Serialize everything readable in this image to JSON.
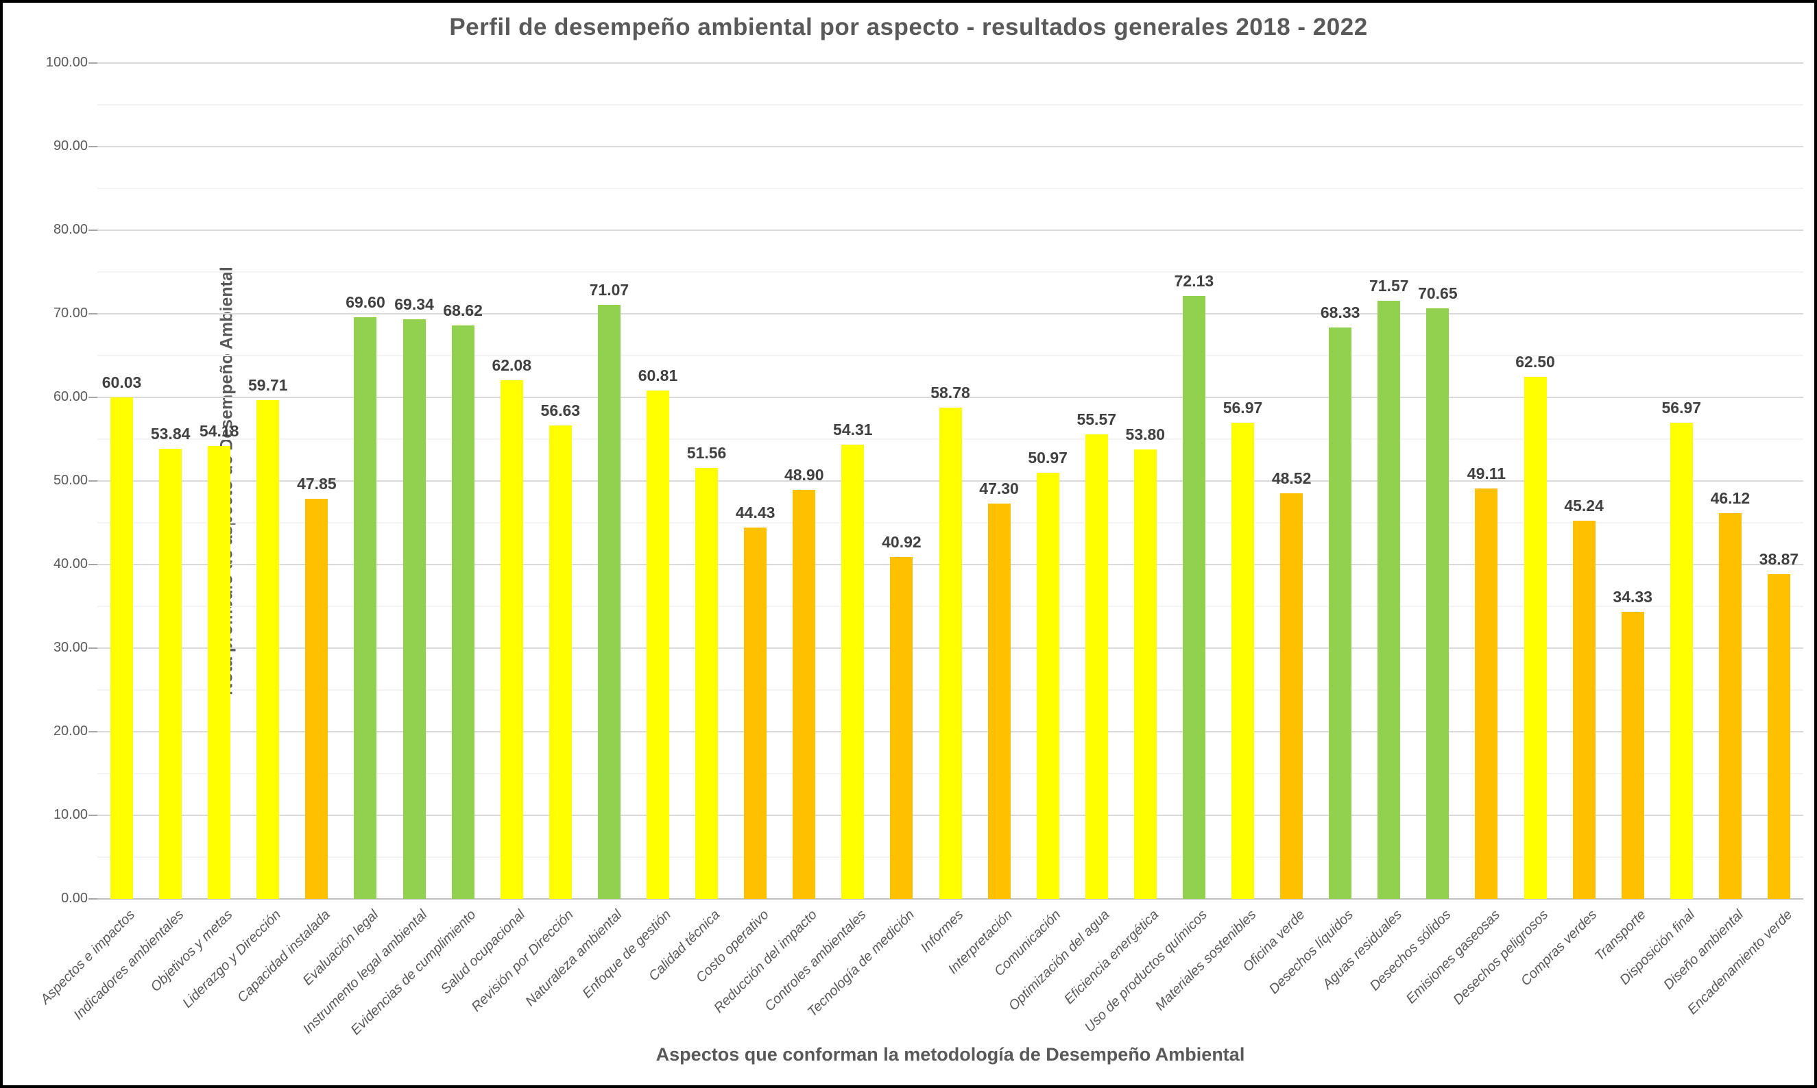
{
  "chart_data": {
    "type": "bar",
    "title": "Perfil de desempeño ambiental por aspecto - resultados generales  2018 - 2022",
    "xlabel": "Aspectos que conforman la metodología de Desempeño Ambiental",
    "ylabel": "Nota promedio de aspecto de Desempeño Ambiental",
    "ylim": [
      0,
      100
    ],
    "y_major_tick": 10,
    "y_minor_tick": 5,
    "y_tick_labels": [
      "0.00",
      "10.00",
      "20.00",
      "30.00",
      "40.00",
      "50.00",
      "60.00",
      "70.00",
      "80.00",
      "90.00",
      "100.00"
    ],
    "grid": true,
    "legend_position": "none",
    "palette": {
      "yellow": "#FFFF00",
      "green": "#92D050",
      "orange": "#FFC000"
    },
    "points": [
      {
        "category": "Aspectos e impactos",
        "value": 60.03,
        "label": "60.03",
        "color": "yellow"
      },
      {
        "category": "Indicadores ambientales",
        "value": 53.84,
        "label": "53.84",
        "color": "yellow"
      },
      {
        "category": "Objetivos y metas",
        "value": 54.18,
        "label": "54.18",
        "color": "yellow"
      },
      {
        "category": "Liderazgo y Dirección",
        "value": 59.71,
        "label": "59.71",
        "color": "yellow"
      },
      {
        "category": "Capacidad instalada",
        "value": 47.85,
        "label": "47.85",
        "color": "orange"
      },
      {
        "category": "Evaluación legal",
        "value": 69.6,
        "label": "69.60",
        "color": "green"
      },
      {
        "category": "Instrumento legal ambiental",
        "value": 69.34,
        "label": "69.34",
        "color": "green"
      },
      {
        "category": "Evidencias de cumplimiento",
        "value": 68.62,
        "label": "68.62",
        "color": "green"
      },
      {
        "category": "Salud ocupacional",
        "value": 62.08,
        "label": "62.08",
        "color": "yellow"
      },
      {
        "category": "Revisión por Dirección",
        "value": 56.63,
        "label": "56.63",
        "color": "yellow"
      },
      {
        "category": "Naturaleza ambiental",
        "value": 71.07,
        "label": "71.07",
        "color": "green"
      },
      {
        "category": "Enfoque de gestión",
        "value": 60.81,
        "label": "60.81",
        "color": "yellow"
      },
      {
        "category": "Calidad técnica",
        "value": 51.56,
        "label": "51.56",
        "color": "yellow"
      },
      {
        "category": "Costo operativo",
        "value": 44.43,
        "label": "44.43",
        "color": "orange"
      },
      {
        "category": "Reducción del impacto",
        "value": 48.9,
        "label": "48.90",
        "color": "orange"
      },
      {
        "category": "Controles ambientales",
        "value": 54.31,
        "label": "54.31",
        "color": "yellow"
      },
      {
        "category": "Tecnología de medición",
        "value": 40.92,
        "label": "40.92",
        "color": "orange"
      },
      {
        "category": "Informes",
        "value": 58.78,
        "label": "58.78",
        "color": "yellow"
      },
      {
        "category": "Interpretación",
        "value": 47.3,
        "label": "47.30",
        "color": "orange"
      },
      {
        "category": "Comunicación",
        "value": 50.97,
        "label": "50.97",
        "color": "yellow"
      },
      {
        "category": "Optimización del agua",
        "value": 55.57,
        "label": "55.57",
        "color": "yellow"
      },
      {
        "category": "Eficiencia energética",
        "value": 53.8,
        "label": "53.80",
        "color": "yellow"
      },
      {
        "category": "Uso de productos químicos",
        "value": 72.13,
        "label": "72.13",
        "color": "green"
      },
      {
        "category": "Materiales sostenibles",
        "value": 56.97,
        "label": "56.97",
        "color": "yellow"
      },
      {
        "category": "Oficina verde",
        "value": 48.52,
        "label": "48.52",
        "color": "orange"
      },
      {
        "category": "Desechos líquidos",
        "value": 68.33,
        "label": "68.33",
        "color": "green"
      },
      {
        "category": "Aguas residuales",
        "value": 71.57,
        "label": "71.57",
        "color": "green"
      },
      {
        "category": "Desechos sólidos",
        "value": 70.65,
        "label": "70.65",
        "color": "green"
      },
      {
        "category": "Emisiones gaseosas",
        "value": 49.11,
        "label": "49.11",
        "color": "orange"
      },
      {
        "category": "Desechos peligrosos",
        "value": 62.5,
        "label": "62.50",
        "color": "yellow"
      },
      {
        "category": "Compras verdes",
        "value": 45.24,
        "label": "45.24",
        "color": "orange"
      },
      {
        "category": "Transporte",
        "value": 34.33,
        "label": "34.33",
        "color": "orange"
      },
      {
        "category": "Disposición final",
        "value": 56.97,
        "label": "56.97",
        "color": "yellow"
      },
      {
        "category": "Diseño ambiental",
        "value": 46.12,
        "label": "46.12",
        "color": "orange"
      },
      {
        "category": "Encadenamiento verde",
        "value": 38.87,
        "label": "38.87",
        "color": "orange"
      }
    ]
  }
}
